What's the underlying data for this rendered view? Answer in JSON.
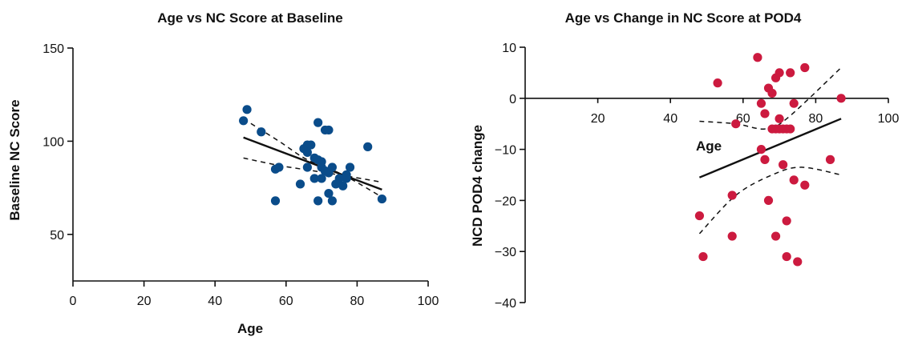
{
  "chart_data": [
    {
      "type": "scatter",
      "title": "Age vs NC Score at Baseline",
      "xlabel": "Age",
      "ylabel": "Baseline NC Score",
      "xlim": [
        0,
        100
      ],
      "ylim": [
        25,
        150
      ],
      "xticks": [
        0,
        20,
        40,
        60,
        80,
        100
      ],
      "yticks": [
        50,
        100,
        150
      ],
      "point_color": "#0a4c8a",
      "points": [
        [
          48,
          111
        ],
        [
          49,
          117
        ],
        [
          53,
          105
        ],
        [
          57,
          85
        ],
        [
          58,
          86
        ],
        [
          57,
          68
        ],
        [
          64,
          77
        ],
        [
          65,
          96
        ],
        [
          66,
          98
        ],
        [
          66,
          94
        ],
        [
          67,
          98
        ],
        [
          66,
          86
        ],
        [
          68,
          91
        ],
        [
          69,
          90
        ],
        [
          70,
          89
        ],
        [
          68,
          80
        ],
        [
          69,
          110
        ],
        [
          71,
          106
        ],
        [
          72,
          106
        ],
        [
          70,
          86
        ],
        [
          71,
          84
        ],
        [
          72,
          83
        ],
        [
          73,
          86
        ],
        [
          71,
          84
        ],
        [
          70,
          80
        ],
        [
          69,
          68
        ],
        [
          73,
          68
        ],
        [
          72,
          72
        ],
        [
          74,
          77
        ],
        [
          75,
          80
        ],
        [
          76,
          76
        ],
        [
          77,
          82
        ],
        [
          77,
          80
        ],
        [
          78,
          86
        ],
        [
          83,
          97
        ],
        [
          87,
          69
        ]
      ],
      "fit": [
        [
          48,
          102
        ],
        [
          87,
          74
        ]
      ],
      "ci_upper": [
        [
          48,
          112
        ],
        [
          58,
          100
        ],
        [
          66,
          90
        ],
        [
          76,
          82
        ],
        [
          87,
          70
        ]
      ],
      "ci_lower": [
        [
          48,
          91
        ],
        [
          58,
          87
        ],
        [
          68,
          84
        ],
        [
          78,
          81
        ],
        [
          87,
          78
        ]
      ]
    },
    {
      "type": "scatter",
      "title": "Age vs Change in NC Score at POD4",
      "xlabel": "Age",
      "ylabel": "NCD POD4 change",
      "xlim": [
        0,
        100
      ],
      "ylim": [
        -40,
        10
      ],
      "xticks": [
        20,
        40,
        60,
        80,
        100
      ],
      "yticks": [
        10,
        0,
        -10,
        -20,
        -30,
        -40
      ],
      "point_color": "#cc1a3f",
      "points": [
        [
          48,
          -23
        ],
        [
          49,
          -31
        ],
        [
          53,
          3
        ],
        [
          57,
          -19
        ],
        [
          57,
          -27
        ],
        [
          58,
          -5
        ],
        [
          64,
          8
        ],
        [
          65,
          -1
        ],
        [
          65,
          -10
        ],
        [
          66,
          -3
        ],
        [
          66,
          -12
        ],
        [
          67,
          -20
        ],
        [
          67,
          2
        ],
        [
          68,
          -6
        ],
        [
          68,
          1
        ],
        [
          69,
          4
        ],
        [
          69,
          -6
        ],
        [
          69,
          -27
        ],
        [
          70,
          5
        ],
        [
          70,
          -4
        ],
        [
          70,
          -6
        ],
        [
          71,
          -13
        ],
        [
          71,
          -6
        ],
        [
          72,
          -6
        ],
        [
          72,
          -24
        ],
        [
          72,
          -31
        ],
        [
          73,
          5
        ],
        [
          73,
          -6
        ],
        [
          74,
          -1
        ],
        [
          74,
          -16
        ],
        [
          75,
          -32
        ],
        [
          77,
          6
        ],
        [
          77,
          -17
        ],
        [
          84,
          -12
        ],
        [
          87,
          0
        ]
      ],
      "fit": [
        [
          48,
          -15.5
        ],
        [
          87,
          -4
        ]
      ],
      "ci_upper": [
        [
          48,
          -4.5
        ],
        [
          58,
          -5
        ],
        [
          66,
          -6
        ],
        [
          72,
          -4
        ],
        [
          87,
          6
        ]
      ],
      "ci_lower": [
        [
          48,
          -26.5
        ],
        [
          58,
          -19
        ],
        [
          68,
          -15
        ],
        [
          76,
          -13.5
        ],
        [
          87,
          -15
        ]
      ]
    }
  ]
}
